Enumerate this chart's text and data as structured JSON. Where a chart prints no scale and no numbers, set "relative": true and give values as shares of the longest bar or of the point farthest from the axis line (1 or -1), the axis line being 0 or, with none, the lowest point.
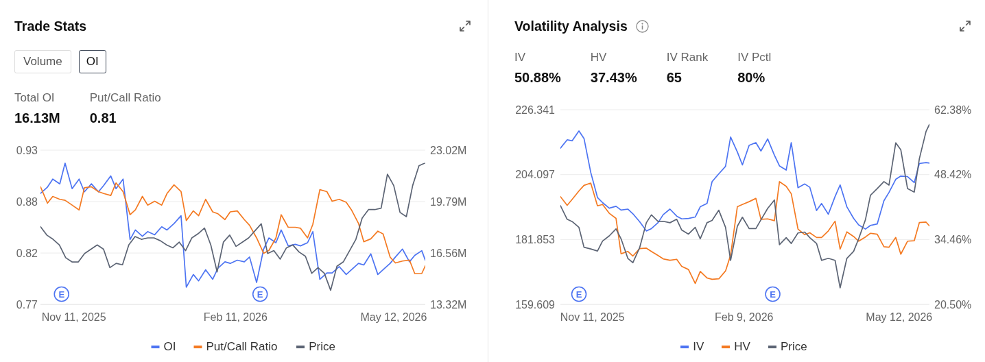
{
  "chart_data": [
    {
      "type": "line",
      "title": "Trade Stats",
      "x": [
        "2025-10-23",
        "2025-10-27",
        "2025-10-30",
        "2025-11-03",
        "2025-11-06",
        "2025-11-10",
        "2025-11-14",
        "2025-11-17",
        "2025-11-21",
        "2025-11-25",
        "2025-11-28",
        "2025-12-02",
        "2025-12-05",
        "2025-12-09",
        "2025-12-13",
        "2025-12-16",
        "2025-12-20",
        "2025-12-23",
        "2025-12-27",
        "2025-12-31",
        "2026-01-03",
        "2026-01-07",
        "2026-01-11",
        "2026-01-14",
        "2026-01-18",
        "2026-01-21",
        "2026-01-25",
        "2026-01-29",
        "2026-02-01",
        "2026-02-05",
        "2026-02-08",
        "2026-02-12",
        "2026-02-16",
        "2026-02-19",
        "2026-02-23",
        "2026-02-27",
        "2026-03-02",
        "2026-03-06",
        "2026-03-09",
        "2026-03-13",
        "2026-03-17",
        "2026-03-20",
        "2026-03-24",
        "2026-03-27",
        "2026-03-31",
        "2026-04-04",
        "2026-04-07",
        "2026-04-11",
        "2026-04-15",
        "2026-04-18",
        "2026-04-22",
        "2026-04-25",
        "2026-04-29",
        "2026-05-03",
        "2026-05-06",
        "2026-05-10",
        "2026-05-13",
        "2026-05-17",
        "2026-05-21",
        "2026-05-24",
        "2026-05-28",
        "2026-05-30"
      ],
      "xlim": [
        "2025-10-23",
        "2026-05-30"
      ],
      "xticks": [
        {
          "value": "2025-11-11",
          "label": "Nov 11, 2025"
        },
        {
          "value": "2026-02-11",
          "label": "Feb 11, 2026"
        },
        {
          "value": "2026-05-12",
          "label": "May 12, 2026"
        }
      ],
      "ylim": [
        0.77,
        0.93
      ],
      "yticks": [
        0.77,
        {
          "value": 0.8233,
          "label": "0.82"
        },
        {
          "value": 0.8767,
          "label": "0.88"
        },
        0.93
      ],
      "y2lim": [
        13.32,
        23.02
      ],
      "y2ticks": [
        {
          "value": 13.32,
          "label": "13.32M"
        },
        {
          "value": 16.56,
          "label": "16.56M"
        },
        {
          "value": 19.79,
          "label": "19.79M"
        },
        {
          "value": 23.02,
          "label": "23.02M"
        }
      ],
      "series": [
        {
          "name": "OI",
          "color": "#4d74f2",
          "axis": "y2",
          "values": [
            20.3,
            20.7,
            21.2,
            20.9,
            22.2,
            20.6,
            21.2,
            20.4,
            20.9,
            20.4,
            20.8,
            21.4,
            20.6,
            21.2,
            17.4,
            18.0,
            17.6,
            17.9,
            17.7,
            18.2,
            18.0,
            18.4,
            18.9,
            14.4,
            15.2,
            14.8,
            15.5,
            14.9,
            15.6,
            16.0,
            15.9,
            16.1,
            16.0,
            16.3,
            14.7,
            16.8,
            17.5,
            17.2,
            18.0,
            17.0,
            17.1,
            17.0,
            17.2,
            17.9,
            14.9,
            15.3,
            15.3,
            15.7,
            15.2,
            15.5,
            15.9,
            15.8,
            16.5,
            15.2,
            15.5,
            15.9,
            16.3,
            16.8,
            16.0,
            16.4,
            16.7,
            16.1
          ]
        },
        {
          "name": "Put/Call Ratio",
          "color": "#f47a22",
          "values": [
            0.892,
            0.875,
            0.882,
            0.879,
            0.878,
            0.873,
            0.868,
            0.891,
            0.892,
            0.887,
            0.885,
            0.883,
            0.896,
            0.887,
            0.863,
            0.868,
            0.882,
            0.873,
            0.877,
            0.873,
            0.885,
            0.894,
            0.887,
            0.857,
            0.867,
            0.862,
            0.879,
            0.866,
            0.864,
            0.858,
            0.866,
            0.867,
            0.858,
            0.852,
            0.839,
            0.823,
            0.826,
            0.839,
            0.863,
            0.85,
            0.85,
            0.849,
            0.839,
            0.853,
            0.889,
            0.887,
            0.877,
            0.879,
            0.876,
            0.868,
            0.854,
            0.835,
            0.838,
            0.846,
            0.843,
            0.819,
            0.813,
            0.815,
            0.816,
            0.802,
            0.802,
            0.81
          ]
        }
      ],
      "annotations": [
        "Volume",
        "OI",
        "Total OI",
        "16.13M",
        "Put/Call Ratio",
        "0.81",
        {
          "text": "E",
          "x": "2025-11-04"
        },
        {
          "text": "E",
          "x": "2026-02-25"
        }
      ],
      "grid": "y",
      "legend": "bottom",
      "marker": "none"
    },
    {
      "type": "line",
      "relative": true,
      "categories": [
        null,
        null,
        null,
        null,
        null,
        null,
        null,
        null,
        null,
        null,
        null,
        null,
        null,
        null,
        null,
        null,
        null,
        null,
        null,
        null,
        null,
        null,
        null,
        null,
        null,
        null,
        null,
        null,
        null,
        null,
        null,
        null,
        null,
        null,
        null,
        null,
        null,
        null,
        null,
        null,
        null,
        null,
        null,
        null,
        null,
        null,
        null,
        null,
        null,
        null,
        null,
        null,
        null,
        null,
        null,
        null,
        null,
        null,
        null,
        null,
        null,
        null
      ],
      "series": [
        {
          "name": "Price",
          "color": "#5c6474",
          "values": [
            0.55,
            0.49,
            0.46,
            0.42,
            0.33,
            0.3,
            0.3,
            0.36,
            0.39,
            0.42,
            0.39,
            0.26,
            0.29,
            0.28,
            0.42,
            0.48,
            0.46,
            0.47,
            0.47,
            0.45,
            0.42,
            0.4,
            0.44,
            0.38,
            0.47,
            0.5,
            0.54,
            0.42,
            0.23,
            0.44,
            0.49,
            0.41,
            0.44,
            0.47,
            0.52,
            0.57,
            0.36,
            0.38,
            0.32,
            0.4,
            0.42,
            0.37,
            0.34,
            0.22,
            0.26,
            0.22,
            0.1,
            0.27,
            0.3,
            0.38,
            0.46,
            0.61,
            0.67,
            0.67,
            0.68,
            0.92,
            0.84,
            0.65,
            0.62,
            0.84,
            0.98,
            1
          ]
        }
      ],
      "legend": "bottom",
      "marker": "none"
    },
    {
      "type": "line",
      "title": "Volatility Analysis",
      "x": [
        "2025-10-23",
        "2025-10-27",
        "2025-10-30",
        "2025-11-03",
        "2025-11-06",
        "2025-11-10",
        "2025-11-14",
        "2025-11-17",
        "2025-11-21",
        "2025-11-25",
        "2025-11-28",
        "2025-12-02",
        "2025-12-05",
        "2025-12-09",
        "2025-12-13",
        "2025-12-16",
        "2025-12-20",
        "2025-12-23",
        "2025-12-27",
        "2025-12-31",
        "2026-01-03",
        "2026-01-07",
        "2026-01-11",
        "2026-01-14",
        "2026-01-18",
        "2026-01-21",
        "2026-01-25",
        "2026-01-29",
        "2026-02-01",
        "2026-02-05",
        "2026-02-08",
        "2026-02-12",
        "2026-02-16",
        "2026-02-19",
        "2026-02-23",
        "2026-02-27",
        "2026-03-02",
        "2026-03-06",
        "2026-03-09",
        "2026-03-13",
        "2026-03-17",
        "2026-03-20",
        "2026-03-24",
        "2026-03-27",
        "2026-03-31",
        "2026-04-04",
        "2026-04-07",
        "2026-04-11",
        "2026-04-15",
        "2026-04-18",
        "2026-04-22",
        "2026-04-25",
        "2026-04-29",
        "2026-05-03",
        "2026-05-06",
        "2026-05-10",
        "2026-05-13",
        "2026-05-17",
        "2026-05-21",
        "2026-05-24",
        "2026-05-28",
        "2026-05-30"
      ],
      "xlim": [
        "2025-10-23",
        "2026-05-30"
      ],
      "xticks": [
        {
          "value": "2025-11-11",
          "label": "Nov 11, 2025"
        },
        {
          "value": "2026-02-09",
          "label": "Feb 9, 2026"
        },
        {
          "value": "2026-05-12",
          "label": "May 12, 2026"
        }
      ],
      "ylim": [
        159.609,
        226.341
      ],
      "yticks": [
        159.609,
        181.853,
        204.097,
        226.341
      ],
      "y2lim": [
        20.5,
        62.38
      ],
      "y2ticks": [
        {
          "value": 20.5,
          "label": "20.50%"
        },
        {
          "value": 34.46,
          "label": "34.46%"
        },
        {
          "value": 48.42,
          "label": "48.42%"
        },
        {
          "value": 62.38,
          "label": "62.38%"
        }
      ],
      "series": [
        {
          "name": "IV",
          "color": "#4d74f2",
          "axis": "y2",
          "values": [
            54.1,
            55.9,
            55.7,
            57.8,
            56.2,
            48.9,
            43.5,
            42.4,
            41.2,
            41.6,
            40.8,
            41.0,
            40.0,
            38.3,
            36.3,
            36.8,
            38.1,
            39.8,
            41.0,
            39.5,
            38.9,
            39.0,
            39.3,
            41.5,
            42.2,
            46.9,
            48.6,
            50.2,
            56.5,
            53.3,
            50.5,
            54.7,
            55.3,
            53.5,
            56.1,
            52.6,
            50.3,
            49.4,
            55.3,
            45.6,
            46.4,
            45.7,
            40.7,
            42.2,
            39.9,
            43.7,
            46.2,
            41.5,
            39.0,
            37.6,
            36.7,
            37.5,
            37.8,
            42.8,
            44.6,
            47.4,
            48.1,
            48.0,
            46.7,
            50.8,
            51.0,
            50.9
          ]
        },
        {
          "name": "HV",
          "color": "#f47a22",
          "axis": "y2",
          "values": [
            43.7,
            41.8,
            43.1,
            44.9,
            46.1,
            46.6,
            41.7,
            42.0,
            40.1,
            39.0,
            31.4,
            31.9,
            30.9,
            32.5,
            32.6,
            31.9,
            31.0,
            30.3,
            30.0,
            30.2,
            28.7,
            28.0,
            25.0,
            27.6,
            26.2,
            25.9,
            26.0,
            27.7,
            31.1,
            41.5,
            42.0,
            42.6,
            43.3,
            38.8,
            38.9,
            38.5,
            46.9,
            45.9,
            44.3,
            36.7,
            35.5,
            35.9,
            34.9,
            34.9,
            36.3,
            38.4,
            32.4,
            36.1,
            35.1,
            34.1,
            35.0,
            35.8,
            35.6,
            32.9,
            32.8,
            34.9,
            31.3,
            34.1,
            34.2,
            38.1,
            38.2,
            37.4
          ]
        },
        {
          "name": "Price",
          "color": "#5c6474",
          "values": [
            193.5,
            188.8,
            188.0,
            186.0,
            179.2,
            178.6,
            177.9,
            181.3,
            183.1,
            185.5,
            182.1,
            175.4,
            173.9,
            179.0,
            187.6,
            190.3,
            188.0,
            188.1,
            187.6,
            188.8,
            185.1,
            183.7,
            186.0,
            182.1,
            187.6,
            188.4,
            191.9,
            186.0,
            174.7,
            186.4,
            189.5,
            185.6,
            185.6,
            188.6,
            192.5,
            195.4,
            180.1,
            182.5,
            180.5,
            184.1,
            184.4,
            182.5,
            180.5,
            174.7,
            175.4,
            174.7,
            165.3,
            175.4,
            177.8,
            182.1,
            188.6,
            197.0,
            199.3,
            201.7,
            200.5,
            215.0,
            212.6,
            199.3,
            198.1,
            209.5,
            218.9,
            221.3
          ]
        }
      ],
      "annotations": [
        "IV",
        "50.88%",
        "HV",
        "37.43%",
        "IV Rank",
        "65",
        "IV Pctl",
        "80%",
        {
          "text": "E",
          "x": "2025-11-03"
        },
        {
          "text": "E",
          "x": "2026-02-26"
        }
      ],
      "grid": "y",
      "legend": "bottom",
      "marker": "none"
    }
  ]
}
